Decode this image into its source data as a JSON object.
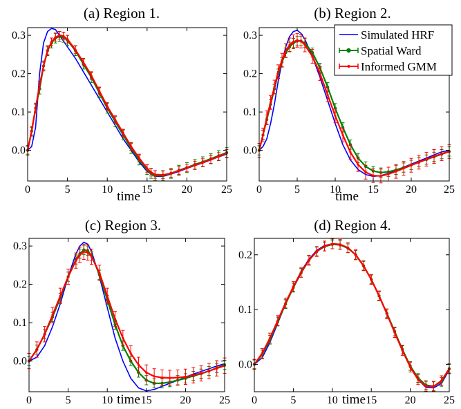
{
  "colors": {
    "simulated": "#0000ff",
    "ward": "#008000",
    "gmm": "#ff0000"
  },
  "legend": {
    "simulated": "Simulated HRF",
    "ward": "Spatial Ward",
    "gmm": "Informed GMM"
  },
  "chart_data": [
    {
      "type": "line",
      "title": "(a) Region 1.",
      "xlabel": "time",
      "ylabel": "",
      "xlim": [
        0,
        25
      ],
      "ylim": [
        -0.08,
        0.32
      ],
      "xticks": [
        0,
        5,
        10,
        15,
        20,
        25
      ],
      "yticks": [
        0.0,
        0.1,
        0.2,
        0.3
      ],
      "ytick_labels": [
        "0.0",
        "0.1",
        "0.2",
        "0.3"
      ],
      "legend": false,
      "series": [
        {
          "key": "simulated",
          "name": "Simulated HRF",
          "x": [
            0,
            0.5,
            1,
            1.5,
            2,
            2.5,
            3,
            3.5,
            4,
            5,
            6,
            7,
            8,
            9,
            10,
            11,
            12,
            13,
            14,
            15,
            16,
            17,
            18,
            19,
            20,
            21,
            22,
            23,
            24,
            25
          ],
          "y": [
            0.0,
            0.01,
            0.06,
            0.2,
            0.28,
            0.31,
            0.318,
            0.315,
            0.3,
            0.27,
            0.24,
            0.205,
            0.17,
            0.135,
            0.1,
            0.065,
            0.03,
            0.0,
            -0.03,
            -0.055,
            -0.068,
            -0.068,
            -0.062,
            -0.055,
            -0.047,
            -0.04,
            -0.033,
            -0.025,
            -0.017,
            -0.01
          ]
        },
        {
          "key": "ward",
          "name": "Spatial Ward",
          "x": [
            0,
            0.5,
            1,
            1.5,
            2,
            2.5,
            3,
            3.5,
            4,
            4.5,
            5,
            6,
            7,
            8,
            9,
            10,
            11,
            12,
            13,
            14,
            15,
            15.5,
            16,
            17,
            18,
            19,
            20,
            21,
            22,
            23,
            24,
            25
          ],
          "y": [
            0.0,
            0.05,
            0.11,
            0.16,
            0.22,
            0.26,
            0.28,
            0.293,
            0.297,
            0.295,
            0.287,
            0.26,
            0.225,
            0.19,
            0.15,
            0.11,
            0.075,
            0.04,
            0.005,
            -0.025,
            -0.05,
            -0.06,
            -0.066,
            -0.066,
            -0.06,
            -0.052,
            -0.045,
            -0.037,
            -0.03,
            -0.022,
            -0.014,
            -0.006
          ],
          "error": 0.013
        },
        {
          "key": "gmm",
          "name": "Informed GMM",
          "x": [
            0,
            0.5,
            1,
            1.5,
            2,
            2.5,
            3,
            3.5,
            4,
            4.5,
            5,
            6,
            7,
            8,
            9,
            10,
            11,
            12,
            13,
            14,
            15,
            15.5,
            16,
            17,
            18,
            19,
            20,
            21,
            22,
            23,
            24,
            25
          ],
          "y": [
            0.0,
            0.05,
            0.11,
            0.17,
            0.22,
            0.26,
            0.283,
            0.295,
            0.3,
            0.298,
            0.29,
            0.262,
            0.23,
            0.195,
            0.155,
            0.115,
            0.08,
            0.045,
            0.01,
            -0.02,
            -0.047,
            -0.057,
            -0.063,
            -0.064,
            -0.06,
            -0.053,
            -0.046,
            -0.039,
            -0.032,
            -0.024,
            -0.016,
            -0.008
          ],
          "error": 0.01
        }
      ]
    },
    {
      "type": "line",
      "title": "(b) Region 2.",
      "xlabel": "time",
      "ylabel": "",
      "xlim": [
        0,
        25
      ],
      "ylim": [
        -0.08,
        0.32
      ],
      "xticks": [
        0,
        5,
        10,
        15,
        20,
        25
      ],
      "yticks": [
        0.0,
        0.1,
        0.2,
        0.3
      ],
      "ytick_labels": [
        "0.0",
        "0.1",
        "0.2",
        "0.3"
      ],
      "legend": true,
      "legend_position": "top-right",
      "series": [
        {
          "key": "simulated",
          "name": "Simulated HRF",
          "x": [
            0,
            0.5,
            1,
            1.5,
            2,
            2.5,
            3,
            3.5,
            4,
            4.5,
            5,
            5.5,
            6,
            7,
            8,
            9,
            10,
            11,
            12,
            13,
            14,
            15,
            16,
            17,
            18,
            19,
            20,
            21,
            22,
            23,
            24,
            25
          ],
          "y": [
            0.0,
            0.01,
            0.03,
            0.07,
            0.12,
            0.18,
            0.23,
            0.27,
            0.297,
            0.31,
            0.313,
            0.305,
            0.29,
            0.245,
            0.19,
            0.13,
            0.07,
            0.015,
            -0.025,
            -0.05,
            -0.063,
            -0.068,
            -0.066,
            -0.06,
            -0.052,
            -0.044,
            -0.036,
            -0.028,
            -0.02,
            -0.012,
            -0.004,
            0.0
          ]
        },
        {
          "key": "ward",
          "name": "Spatial Ward",
          "x": [
            0,
            0.5,
            1,
            1.5,
            2,
            2.5,
            3,
            3.5,
            4,
            4.5,
            5,
            5.5,
            6,
            7,
            8,
            9,
            10,
            11,
            12,
            13,
            14,
            15,
            16,
            17,
            18,
            19,
            20,
            21,
            22,
            23,
            24,
            25
          ],
          "y": [
            0.0,
            0.04,
            0.08,
            0.12,
            0.16,
            0.2,
            0.23,
            0.255,
            0.27,
            0.28,
            0.285,
            0.285,
            0.28,
            0.255,
            0.215,
            0.165,
            0.11,
            0.06,
            0.015,
            -0.02,
            -0.042,
            -0.054,
            -0.058,
            -0.056,
            -0.051,
            -0.045,
            -0.038,
            -0.031,
            -0.024,
            -0.017,
            -0.01,
            -0.003
          ],
          "error": 0.012
        },
        {
          "key": "gmm",
          "name": "Informed GMM",
          "x": [
            0,
            0.5,
            1,
            1.5,
            2,
            2.5,
            3,
            3.5,
            4,
            4.5,
            5,
            5.5,
            6,
            7,
            8,
            9,
            10,
            11,
            12,
            13,
            14,
            15,
            16,
            17,
            18,
            19,
            20,
            21,
            22,
            23,
            24,
            25
          ],
          "y": [
            0.0,
            0.04,
            0.085,
            0.125,
            0.165,
            0.205,
            0.235,
            0.26,
            0.275,
            0.283,
            0.287,
            0.285,
            0.275,
            0.245,
            0.2,
            0.145,
            0.09,
            0.04,
            -0.005,
            -0.037,
            -0.057,
            -0.066,
            -0.067,
            -0.062,
            -0.055,
            -0.047,
            -0.039,
            -0.031,
            -0.023,
            -0.016,
            -0.009,
            -0.003
          ],
          "error": 0.018
        }
      ]
    },
    {
      "type": "line",
      "title": "(c) Region 3.",
      "xlabel": "time",
      "ylabel": "",
      "xlim": [
        0,
        25
      ],
      "ylim": [
        -0.08,
        0.32
      ],
      "xticks": [
        0,
        5,
        10,
        15,
        20,
        25
      ],
      "yticks": [
        0.0,
        0.1,
        0.2,
        0.3
      ],
      "ytick_labels": [
        "0.0",
        "0.1",
        "0.2",
        "0.3"
      ],
      "legend": false,
      "series": [
        {
          "key": "simulated",
          "name": "Simulated HRF",
          "x": [
            0,
            1,
            2,
            3,
            4,
            5,
            6,
            6.5,
            7,
            7.5,
            8,
            9,
            10,
            11,
            12,
            13,
            14,
            15,
            16,
            17,
            18,
            19,
            20,
            21,
            22,
            23,
            24,
            25
          ],
          "y": [
            0.0,
            0.01,
            0.04,
            0.09,
            0.15,
            0.22,
            0.28,
            0.3,
            0.31,
            0.305,
            0.285,
            0.22,
            0.14,
            0.06,
            0.0,
            -0.045,
            -0.07,
            -0.078,
            -0.074,
            -0.066,
            -0.058,
            -0.05,
            -0.042,
            -0.034,
            -0.027,
            -0.02,
            -0.013,
            -0.007
          ]
        },
        {
          "key": "ward",
          "name": "Spatial Ward",
          "x": [
            0,
            1,
            2,
            3,
            4,
            5,
            6,
            6.5,
            7,
            7.5,
            8,
            9,
            10,
            11,
            12,
            13,
            14,
            15,
            16,
            17,
            18,
            19,
            20,
            21,
            22,
            23,
            24,
            25
          ],
          "y": [
            0.0,
            0.03,
            0.07,
            0.115,
            0.165,
            0.22,
            0.265,
            0.28,
            0.29,
            0.288,
            0.275,
            0.225,
            0.16,
            0.095,
            0.04,
            0.0,
            -0.03,
            -0.05,
            -0.058,
            -0.058,
            -0.055,
            -0.05,
            -0.045,
            -0.039,
            -0.033,
            -0.026,
            -0.018,
            -0.01
          ],
          "error": 0.012
        },
        {
          "key": "gmm",
          "name": "Informed GMM",
          "x": [
            0,
            1,
            2,
            3,
            4,
            5,
            6,
            6.5,
            7,
            7.5,
            8,
            9,
            10,
            11,
            12,
            13,
            14,
            15,
            16,
            17,
            18,
            19,
            20,
            21,
            22,
            23,
            24,
            25
          ],
          "y": [
            0.0,
            0.03,
            0.07,
            0.12,
            0.17,
            0.22,
            0.262,
            0.277,
            0.285,
            0.283,
            0.272,
            0.23,
            0.17,
            0.11,
            0.06,
            0.02,
            -0.01,
            -0.03,
            -0.04,
            -0.043,
            -0.044,
            -0.043,
            -0.041,
            -0.037,
            -0.032,
            -0.026,
            -0.019,
            -0.012
          ],
          "error": 0.02
        }
      ]
    },
    {
      "type": "line",
      "title": "(d) Region 4.",
      "xlabel": "time",
      "ylabel": "",
      "xlim": [
        0,
        25
      ],
      "ylim": [
        -0.05,
        0.23
      ],
      "xticks": [
        0,
        5,
        10,
        15,
        20,
        25
      ],
      "yticks": [
        0.0,
        0.1,
        0.2
      ],
      "ytick_labels": [
        "0.0",
        "0.1",
        "0.2"
      ],
      "legend": false,
      "series": [
        {
          "key": "simulated",
          "name": "Simulated HRF",
          "x": [
            0,
            1,
            2,
            3,
            4,
            5,
            6,
            7,
            8,
            9,
            10,
            11,
            12,
            13,
            14,
            15,
            16,
            17,
            18,
            19,
            20,
            21,
            22,
            23,
            24,
            25
          ],
          "y": [
            0.0,
            0.012,
            0.04,
            0.075,
            0.11,
            0.142,
            0.17,
            0.192,
            0.208,
            0.217,
            0.22,
            0.219,
            0.213,
            0.2,
            0.18,
            0.155,
            0.125,
            0.092,
            0.058,
            0.025,
            -0.005,
            -0.028,
            -0.042,
            -0.043,
            -0.035,
            -0.01
          ]
        },
        {
          "key": "ward",
          "name": "Spatial Ward",
          "x": [
            0,
            1,
            2,
            3,
            4,
            5,
            6,
            7,
            8,
            9,
            10,
            11,
            12,
            13,
            14,
            15,
            16,
            17,
            18,
            19,
            20,
            21,
            22,
            23,
            24,
            25
          ],
          "y": [
            0.0,
            0.018,
            0.045,
            0.078,
            0.11,
            0.14,
            0.167,
            0.19,
            0.206,
            0.215,
            0.219,
            0.218,
            0.212,
            0.2,
            0.18,
            0.155,
            0.125,
            0.093,
            0.06,
            0.027,
            -0.003,
            -0.025,
            -0.038,
            -0.04,
            -0.032,
            -0.008
          ],
          "error": 0.008
        },
        {
          "key": "gmm",
          "name": "Informed GMM",
          "x": [
            0,
            1,
            2,
            3,
            4,
            5,
            6,
            7,
            8,
            9,
            10,
            11,
            12,
            13,
            14,
            15,
            16,
            17,
            18,
            19,
            20,
            21,
            22,
            23,
            24,
            25
          ],
          "y": [
            0.0,
            0.02,
            0.048,
            0.08,
            0.112,
            0.142,
            0.168,
            0.19,
            0.206,
            0.216,
            0.22,
            0.219,
            0.213,
            0.2,
            0.18,
            0.155,
            0.125,
            0.092,
            0.058,
            0.025,
            -0.005,
            -0.028,
            -0.04,
            -0.04,
            -0.03,
            -0.008
          ],
          "error": 0.009
        }
      ]
    }
  ]
}
